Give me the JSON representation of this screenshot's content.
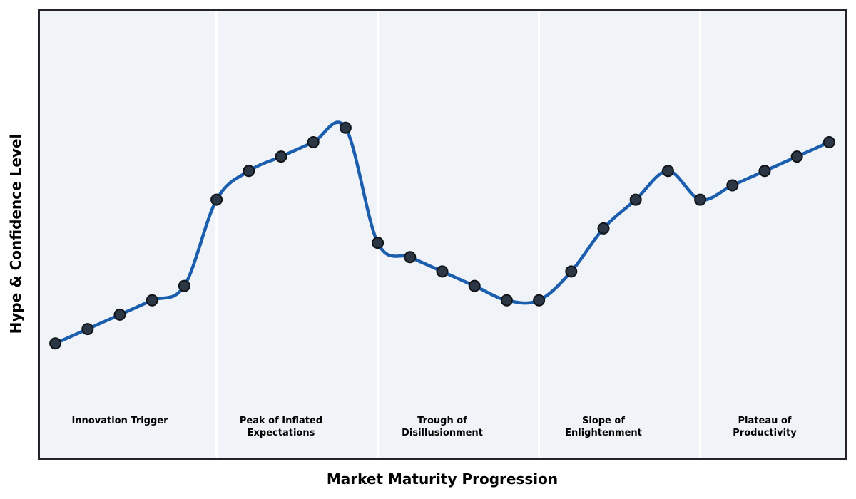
{
  "figure": {
    "page_background": "#ffffff",
    "plot_background": "#f0f4f8",
    "border_color": "#232329",
    "separator_color": "#ffffff"
  },
  "chart_data": {
    "type": "line",
    "title": "",
    "xlabel": "Market Maturity Progression",
    "ylabel": "Hype & Confidence Level",
    "x": [
      0,
      1,
      2,
      3,
      4,
      5,
      6,
      7,
      8,
      9,
      10,
      11,
      12,
      13,
      14,
      15,
      16,
      17,
      18,
      19,
      20,
      21,
      22,
      23,
      24
    ],
    "values": [
      10,
      15,
      20,
      25,
      30,
      60,
      70,
      75,
      80,
      85,
      45,
      40,
      35,
      30,
      25,
      25,
      35,
      50,
      60,
      70,
      60,
      65,
      70,
      75,
      80
    ],
    "xlim": [
      -0.5,
      24.5
    ],
    "ylim": [
      -30,
      126
    ],
    "grid": false,
    "legend": null,
    "smooth_spline": true,
    "line_color": "#1b5eae",
    "line_width": 4.5,
    "marker_fill": "#2b3745",
    "marker_edge": "#101318",
    "marker_radius": 7.5,
    "separators_x": [
      5,
      10,
      15,
      20
    ],
    "phases": [
      {
        "label": "Innovation Trigger",
        "x_start": -0.5,
        "x_end": 5,
        "label_x": 2
      },
      {
        "label": "Peak of Inflated\nExpectations",
        "x_start": 5,
        "x_end": 10,
        "label_x": 7
      },
      {
        "label": "Trough of\nDisillusionment",
        "x_start": 10,
        "x_end": 15,
        "label_x": 12
      },
      {
        "label": "Slope of\nEnlightenment",
        "x_start": 15,
        "x_end": 20,
        "label_x": 17
      },
      {
        "label": "Plateau of\nProductivity",
        "x_start": 20,
        "x_end": 24.5,
        "label_x": 22
      }
    ]
  }
}
